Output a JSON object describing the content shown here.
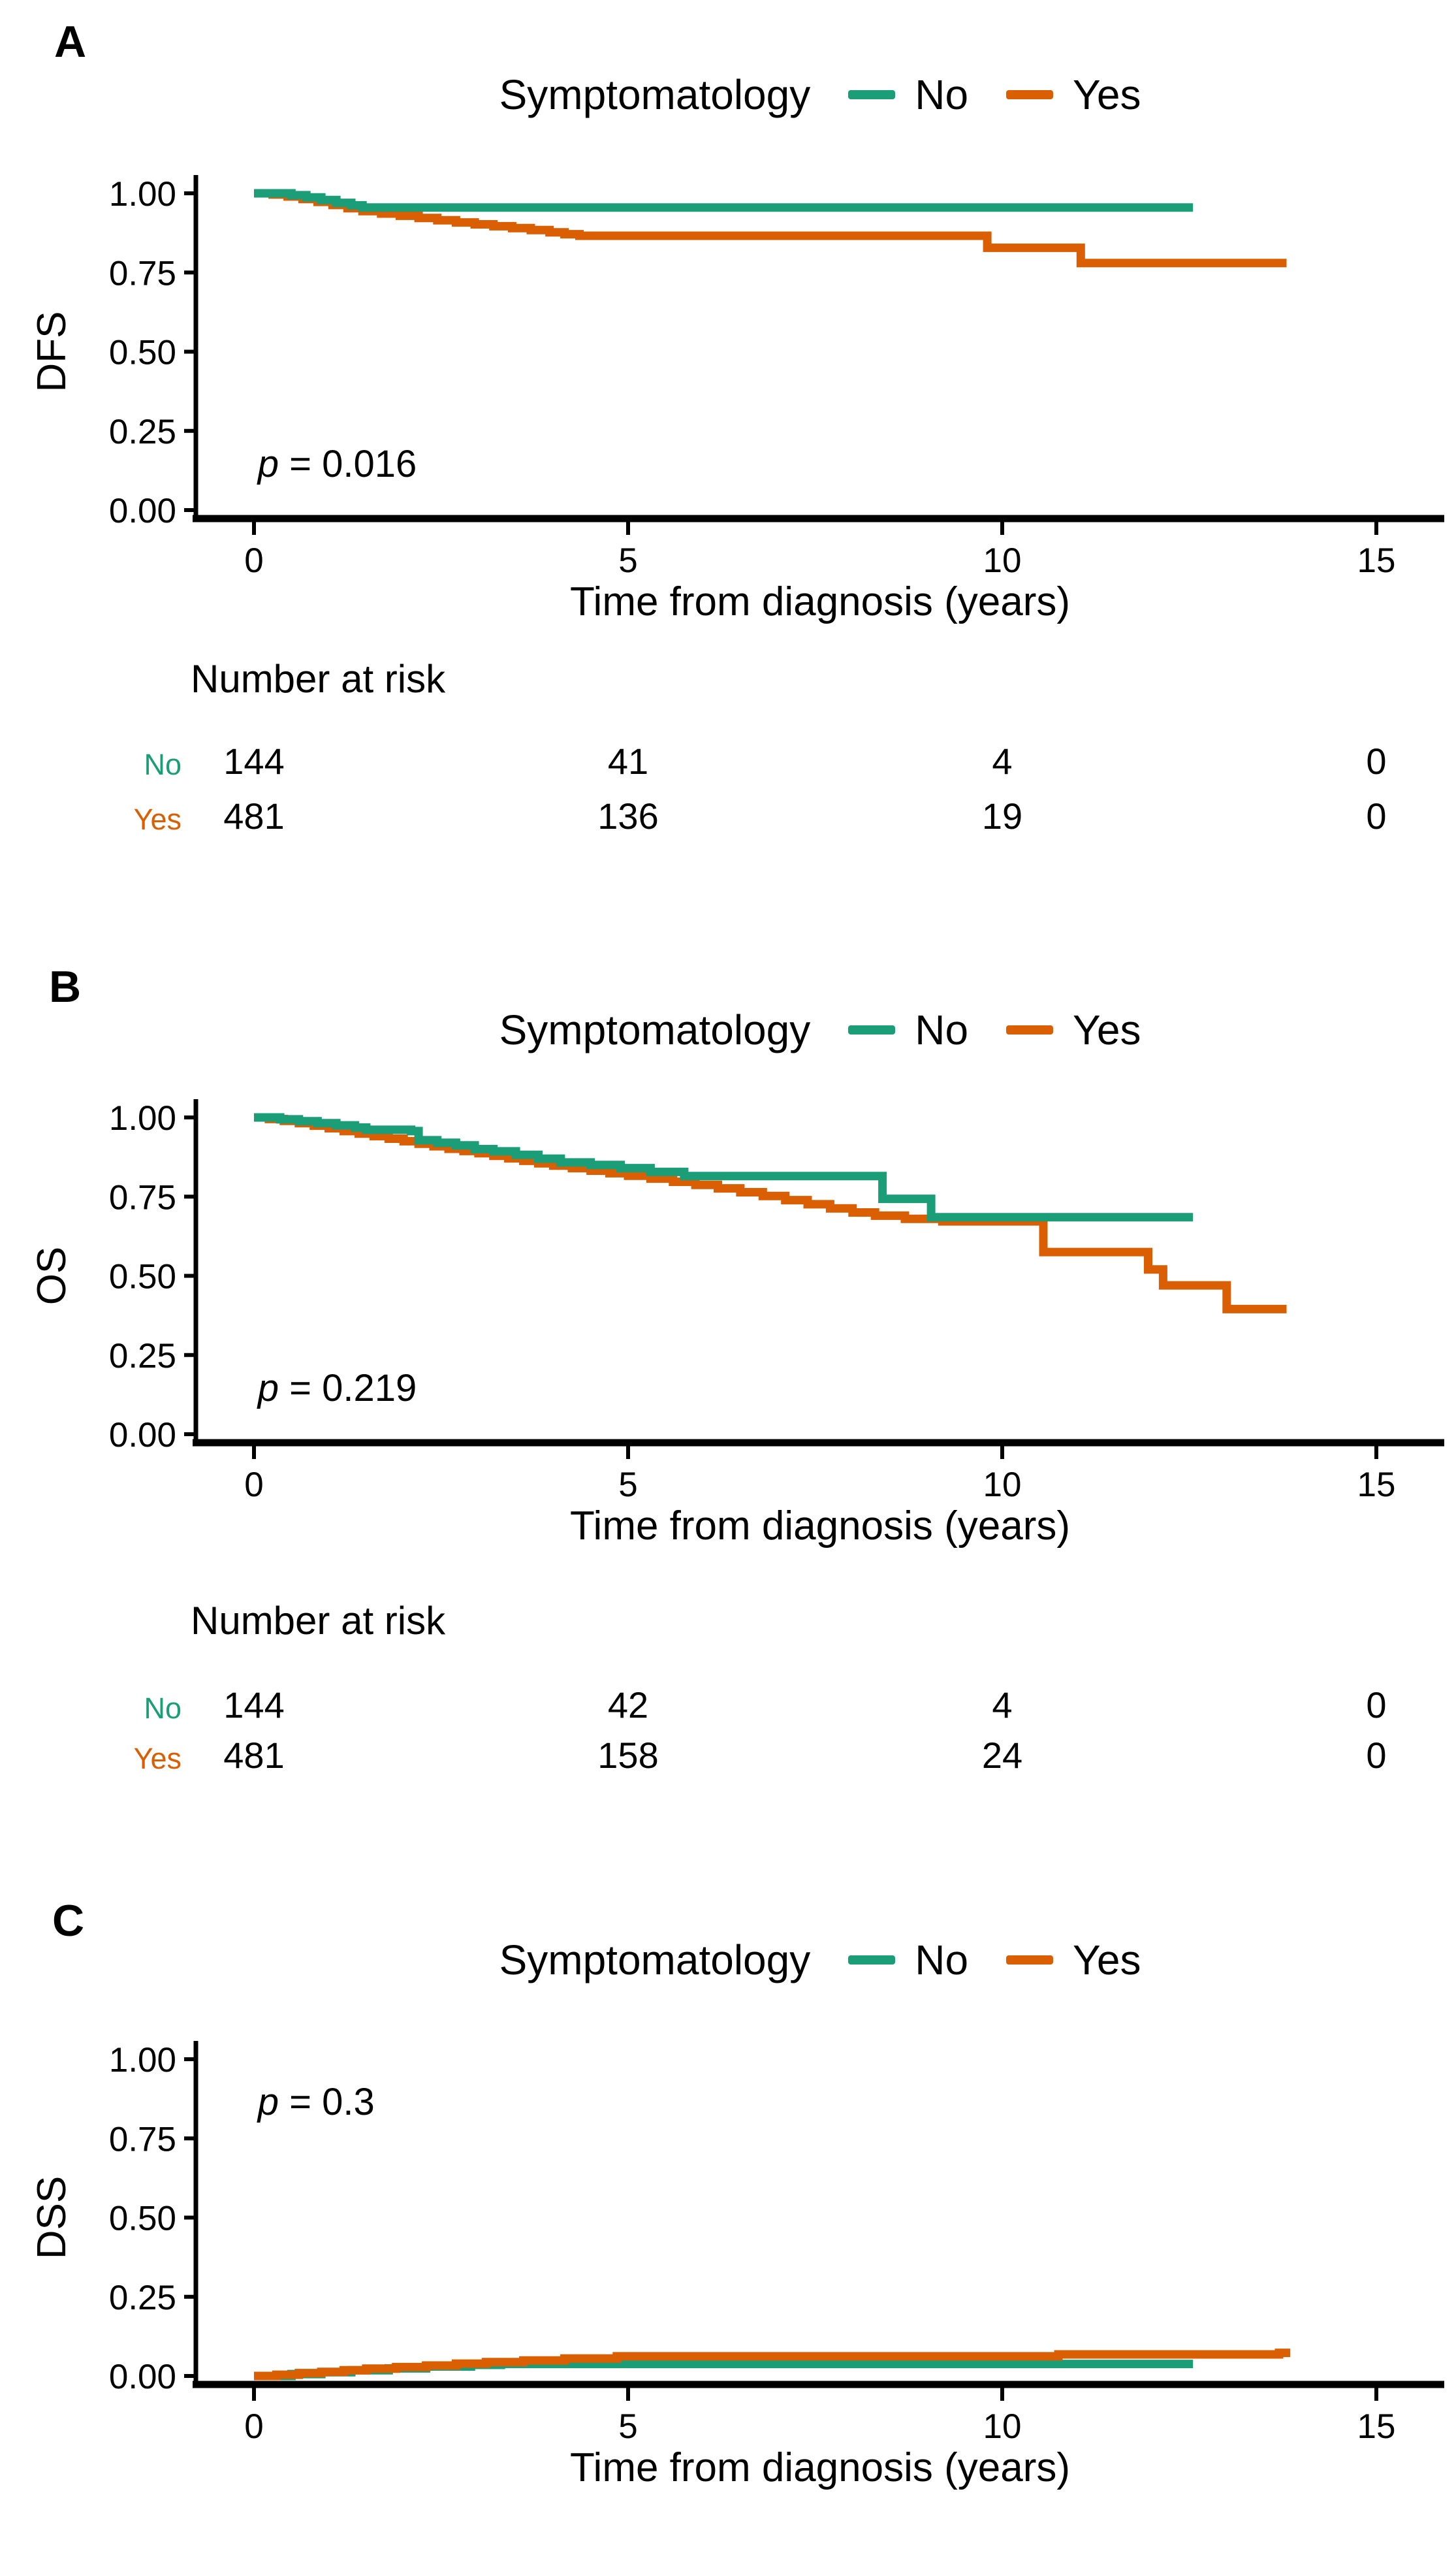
{
  "figure": {
    "background": "#ffffff"
  },
  "legend": {
    "title": "Symptomatology",
    "series": [
      {
        "name": "No",
        "label": "No",
        "color": "#1B9E77"
      },
      {
        "name": "Yes",
        "label": "Yes",
        "color": "#D95F02"
      }
    ]
  },
  "panels": [
    {
      "letter": "A",
      "risk": {
        "title": "Number at risk",
        "rows": [
          {
            "label": "No",
            "color": "#1B9E77",
            "values": [
              "144",
              "41",
              "4",
              "0"
            ]
          },
          {
            "label": "Yes",
            "color": "#D95F02",
            "values": [
              "481",
              "136",
              "19",
              "0"
            ]
          }
        ]
      }
    },
    {
      "letter": "B",
      "risk": {
        "title": "Number at risk",
        "rows": [
          {
            "label": "No",
            "color": "#1B9E77",
            "values": [
              "144",
              "42",
              "4",
              "0"
            ]
          },
          {
            "label": "Yes",
            "color": "#D95F02",
            "values": [
              "481",
              "158",
              "24",
              "0"
            ]
          }
        ]
      }
    },
    {
      "letter": "C"
    }
  ],
  "chart_data": [
    {
      "type": "line",
      "subtype": "kaplan-meier-step",
      "title": "DFS by symptomatology",
      "ylabel": "DFS",
      "xlabel": "Time from diagnosis (years)",
      "xlim": [
        0,
        15.9
      ],
      "ylim": [
        0,
        1
      ],
      "grid": false,
      "legend_position": "top",
      "xticks": [
        {
          "v": 0,
          "label": "0"
        },
        {
          "v": 5,
          "label": "5"
        },
        {
          "v": 10,
          "label": "10"
        },
        {
          "v": 15,
          "label": "15"
        }
      ],
      "yticks": [
        {
          "v": 0,
          "label": "0.00"
        },
        {
          "v": 0.25,
          "label": "0.25"
        },
        {
          "v": 0.5,
          "label": "0.50"
        },
        {
          "v": 0.75,
          "label": "0.75"
        },
        {
          "v": 1,
          "label": "1.00"
        }
      ],
      "p_label": "p = 0.016",
      "p_pos": {
        "x": 0.05,
        "y": 0.105
      },
      "series": [
        {
          "name": "Yes",
          "color": "#D95F02",
          "points": [
            [
              0,
              1
            ],
            [
              0.25,
              0.996
            ],
            [
              0.45,
              0.99
            ],
            [
              0.65,
              0.982
            ],
            [
              0.85,
              0.973
            ],
            [
              1.05,
              0.963
            ],
            [
              1.25,
              0.953
            ],
            [
              1.45,
              0.944
            ],
            [
              1.7,
              0.936
            ],
            [
              1.95,
              0.929
            ],
            [
              2.2,
              0.922
            ],
            [
              2.45,
              0.915
            ],
            [
              2.7,
              0.908
            ],
            [
              2.95,
              0.902
            ],
            [
              3.2,
              0.896
            ],
            [
              3.45,
              0.89
            ],
            [
              3.7,
              0.884
            ],
            [
              3.95,
              0.877
            ],
            [
              4.15,
              0.871
            ],
            [
              4.35,
              0.866
            ],
            [
              9.7,
              0.866
            ],
            [
              9.8,
              0.828
            ],
            [
              10.95,
              0.828
            ],
            [
              11.05,
              0.78
            ],
            [
              13.8,
              0.78
            ]
          ]
        },
        {
          "name": "No",
          "color": "#1B9E77",
          "points": [
            [
              0,
              1
            ],
            [
              0.35,
              1
            ],
            [
              0.5,
              0.994
            ],
            [
              0.7,
              0.987
            ],
            [
              0.9,
              0.979
            ],
            [
              1.1,
              0.97
            ],
            [
              1.3,
              0.962
            ],
            [
              1.45,
              0.955
            ],
            [
              12.55,
              0.955
            ]
          ]
        }
      ]
    },
    {
      "type": "line",
      "subtype": "kaplan-meier-step",
      "title": "OS by symptomatology",
      "ylabel": "OS",
      "xlabel": "Time from diagnosis (years)",
      "xlim": [
        0,
        15.9
      ],
      "ylim": [
        0,
        1
      ],
      "grid": false,
      "legend_position": "top",
      "xticks": [
        {
          "v": 0,
          "label": "0"
        },
        {
          "v": 5,
          "label": "5"
        },
        {
          "v": 10,
          "label": "10"
        },
        {
          "v": 15,
          "label": "15"
        }
      ],
      "yticks": [
        {
          "v": 0,
          "label": "0.00"
        },
        {
          "v": 0.25,
          "label": "0.25"
        },
        {
          "v": 0.5,
          "label": "0.50"
        },
        {
          "v": 0.75,
          "label": "0.75"
        },
        {
          "v": 1,
          "label": "1.00"
        }
      ],
      "p_label": "p = 0.219",
      "p_pos": {
        "x": 0.05,
        "y": 0.105
      },
      "series": [
        {
          "name": "Yes",
          "color": "#D95F02",
          "points": [
            [
              0,
              1
            ],
            [
              0.2,
              0.995
            ],
            [
              0.4,
              0.989
            ],
            [
              0.6,
              0.982
            ],
            [
              0.8,
              0.974
            ],
            [
              1,
              0.966
            ],
            [
              1.2,
              0.957
            ],
            [
              1.4,
              0.949
            ],
            [
              1.6,
              0.941
            ],
            [
              1.8,
              0.933
            ],
            [
              2,
              0.925
            ],
            [
              2.2,
              0.917
            ],
            [
              2.4,
              0.909
            ],
            [
              2.6,
              0.901
            ],
            [
              2.8,
              0.894
            ],
            [
              3,
              0.887
            ],
            [
              3.2,
              0.879
            ],
            [
              3.4,
              0.871
            ],
            [
              3.6,
              0.863
            ],
            [
              3.8,
              0.855
            ],
            [
              4,
              0.848
            ],
            [
              4.25,
              0.84
            ],
            [
              4.5,
              0.832
            ],
            [
              4.75,
              0.824
            ],
            [
              5,
              0.816
            ],
            [
              5.3,
              0.807
            ],
            [
              5.6,
              0.797
            ],
            [
              5.9,
              0.787
            ],
            [
              6.2,
              0.776
            ],
            [
              6.5,
              0.764
            ],
            [
              6.8,
              0.752
            ],
            [
              7.1,
              0.739
            ],
            [
              7.4,
              0.726
            ],
            [
              7.7,
              0.713
            ],
            [
              8,
              0.7
            ],
            [
              8.3,
              0.69
            ],
            [
              8.7,
              0.68
            ],
            [
              9.2,
              0.672
            ],
            [
              10.45,
              0.672
            ],
            [
              10.55,
              0.575
            ],
            [
              11.85,
              0.575
            ],
            [
              11.95,
              0.52
            ],
            [
              12.15,
              0.47
            ],
            [
              12.9,
              0.47
            ],
            [
              13,
              0.395
            ],
            [
              13.8,
              0.395
            ]
          ]
        },
        {
          "name": "No",
          "color": "#1B9E77",
          "points": [
            [
              0,
              1
            ],
            [
              0.35,
              0.994
            ],
            [
              0.6,
              0.988
            ],
            [
              0.85,
              0.982
            ],
            [
              1.1,
              0.975
            ],
            [
              1.35,
              0.968
            ],
            [
              1.5,
              0.961
            ],
            [
              2.1,
              0.957
            ],
            [
              2.2,
              0.928
            ],
            [
              2.45,
              0.92
            ],
            [
              2.7,
              0.912
            ],
            [
              2.95,
              0.9
            ],
            [
              3.2,
              0.893
            ],
            [
              3.5,
              0.882
            ],
            [
              3.8,
              0.87
            ],
            [
              4.1,
              0.858
            ],
            [
              4.5,
              0.85
            ],
            [
              4.9,
              0.84
            ],
            [
              5.3,
              0.828
            ],
            [
              5.75,
              0.815
            ],
            [
              8.25,
              0.815
            ],
            [
              8.4,
              0.743
            ],
            [
              8.95,
              0.743
            ],
            [
              9.05,
              0.685
            ],
            [
              12.55,
              0.685
            ]
          ]
        }
      ]
    },
    {
      "type": "line",
      "subtype": "kaplan-meier-step",
      "title": "DSS (cumulative events) by symptomatology",
      "ylabel": "DSS",
      "xlabel": "Time from diagnosis (years)",
      "xlim": [
        0,
        15.9
      ],
      "ylim": [
        0,
        1
      ],
      "grid": false,
      "legend_position": "top",
      "xticks": [
        {
          "v": 0,
          "label": "0"
        },
        {
          "v": 5,
          "label": "5"
        },
        {
          "v": 10,
          "label": "10"
        },
        {
          "v": 15,
          "label": "15"
        }
      ],
      "yticks": [
        {
          "v": 0,
          "label": "0.00"
        },
        {
          "v": 0.25,
          "label": "0.25"
        },
        {
          "v": 0.5,
          "label": "0.50"
        },
        {
          "v": 0.75,
          "label": "0.75"
        },
        {
          "v": 1,
          "label": "1.00"
        }
      ],
      "p_label": "p = 0.3",
      "p_pos": {
        "x": 0.05,
        "y": 0.825
      },
      "series": [
        {
          "name": "No",
          "color": "#1B9E77",
          "points": [
            [
              0,
              0
            ],
            [
              0.5,
              0.006
            ],
            [
              0.9,
              0.012
            ],
            [
              1.3,
              0.018
            ],
            [
              1.8,
              0.024
            ],
            [
              2.3,
              0.03
            ],
            [
              2.9,
              0.035
            ],
            [
              3.3,
              0.038
            ],
            [
              12.55,
              0.038
            ]
          ]
        },
        {
          "name": "Yes",
          "color": "#D95F02",
          "points": [
            [
              0,
              0
            ],
            [
              0.3,
              0.004
            ],
            [
              0.6,
              0.009
            ],
            [
              0.9,
              0.013
            ],
            [
              1.2,
              0.018
            ],
            [
              1.5,
              0.023
            ],
            [
              1.9,
              0.028
            ],
            [
              2.3,
              0.033
            ],
            [
              2.7,
              0.039
            ],
            [
              3.1,
              0.044
            ],
            [
              3.6,
              0.049
            ],
            [
              4.15,
              0.055
            ],
            [
              4.85,
              0.062
            ],
            [
              10.6,
              0.062
            ],
            [
              10.75,
              0.068
            ],
            [
              13.55,
              0.068
            ],
            [
              13.7,
              0.073
            ],
            [
              13.85,
              0.073
            ]
          ]
        }
      ]
    }
  ]
}
